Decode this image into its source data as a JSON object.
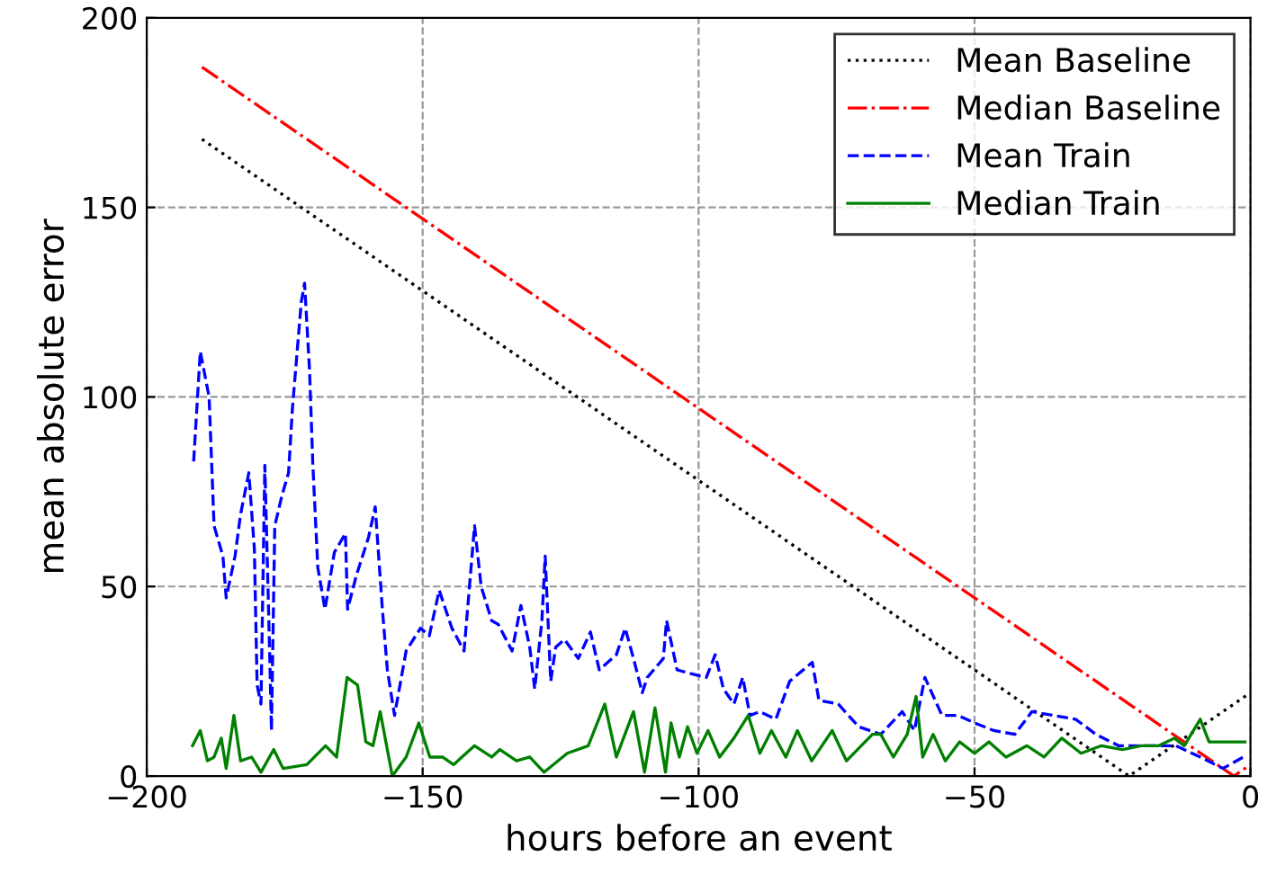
{
  "chart_data": {
    "type": "line",
    "xlabel": "hours before an event",
    "ylabel": "mean absolute error",
    "xlim": [
      -200,
      0
    ],
    "xticks": [
      {
        "value": -200,
        "label": "−200"
      },
      {
        "value": -150,
        "label": "−150"
      },
      {
        "value": -100,
        "label": "−100"
      },
      {
        "value": -50,
        "label": "−50"
      },
      0
    ],
    "ylim": [
      0,
      200
    ],
    "yticks": [
      0,
      50,
      100,
      150,
      200
    ],
    "grid": true,
    "legend": "top right",
    "series": [
      {
        "name": "Mean Baseline",
        "color": "#000000",
        "line_style": "dotted",
        "x": [
          -190,
          -22,
          0
        ],
        "values": [
          168,
          0,
          22
        ]
      },
      {
        "name": "Median Baseline",
        "color": "#ff0000",
        "line_style": "dashdot",
        "x": [
          -190,
          -3,
          0
        ],
        "values": [
          187,
          0,
          3
        ]
      },
      {
        "name": "Mean Train",
        "color": "#0000ff",
        "line_style": "dashed",
        "x": [
          -191.5,
          -190.3,
          -188.7,
          -187.8,
          -186.2,
          -185.6,
          -184,
          -183,
          -181.5,
          -180.5,
          -180,
          -179.3,
          -178.6,
          -177.7,
          -177.4,
          -176.8,
          -175.5,
          -174.3,
          -173.6,
          -172,
          -171.4,
          -170.5,
          -169.9,
          -169,
          -167.7,
          -166,
          -164,
          -163.6,
          -162,
          -159.8,
          -158.6,
          -157.3,
          -156.4,
          -155.1,
          -153,
          -150.4,
          -148.8,
          -147,
          -144.7,
          -142.5,
          -140.6,
          -139.4,
          -137.5,
          -136.3,
          -133.8,
          -132.2,
          -130.6,
          -129.7,
          -128.4,
          -127.8,
          -126.8,
          -125.9,
          -124.3,
          -121.8,
          -119.6,
          -118,
          -114.9,
          -113.3,
          -111.8,
          -110.2,
          -109.3,
          -106.4,
          -105.8,
          -103.9,
          -101.4,
          -98.6,
          -97,
          -95.5,
          -93.6,
          -92,
          -90.7,
          -88.9,
          -86,
          -83.5,
          -79.4,
          -78.2,
          -74.7,
          -71,
          -67,
          -63.1,
          -60.9,
          -59,
          -55.9,
          -53,
          -50,
          -46.5,
          -42.7,
          -39.6,
          -35.8,
          -31.7,
          -28,
          -23.9,
          -18.5,
          -13.5,
          -9.1,
          -5,
          -1.3
        ],
        "values": [
          83,
          112,
          100,
          66,
          58,
          47,
          58,
          69,
          80,
          60,
          24,
          19,
          82,
          31,
          12,
          66,
          74,
          80,
          97,
          125,
          130,
          107,
          82,
          55,
          44,
          59,
          64,
          44,
          53,
          63,
          71,
          44,
          28,
          16,
          33,
          39,
          37,
          49,
          39,
          33,
          66,
          50,
          41,
          40,
          33,
          45,
          34,
          23,
          41,
          58,
          25,
          34,
          36,
          31,
          38,
          28,
          32,
          39,
          31,
          22,
          26,
          31,
          41,
          28,
          27,
          26,
          32,
          23,
          19,
          26,
          16,
          17,
          15,
          25,
          30,
          20,
          19,
          13,
          11,
          17,
          12,
          26,
          16,
          16,
          14,
          12,
          11,
          17,
          16,
          15,
          11,
          8,
          8,
          8,
          5,
          2,
          5
        ]
      },
      {
        "name": "Median Train",
        "color": "#008000",
        "line_style": "solid",
        "x": [
          -191.7,
          -190.3,
          -189,
          -187.8,
          -186.5,
          -185.6,
          -184.2,
          -183,
          -181,
          -179.3,
          -177,
          -175.3,
          -171,
          -167.6,
          -165.6,
          -163.7,
          -161.8,
          -160.3,
          -159,
          -157.7,
          -155.5,
          -153,
          -150.7,
          -148.7,
          -146.4,
          -144.4,
          -140.6,
          -137.5,
          -136,
          -133,
          -130.6,
          -128,
          -123.8,
          -120,
          -117,
          -114.9,
          -111.8,
          -109.8,
          -107.9,
          -106,
          -105,
          -103.5,
          -102,
          -100.3,
          -98.3,
          -96.2,
          -93.6,
          -91,
          -88.9,
          -86.8,
          -84.2,
          -82.1,
          -79.5,
          -75.8,
          -73.2,
          -68.5,
          -67,
          -64.7,
          -62.2,
          -60.6,
          -59.4,
          -57.5,
          -55.3,
          -52.7,
          -50,
          -47.4,
          -44.3,
          -40.5,
          -37.4,
          -34.2,
          -30.7,
          -27,
          -23.2,
          -19.8,
          -16.6,
          -13.8,
          -12,
          -9.1,
          -7.5,
          -4,
          -1
        ],
        "values": [
          8,
          12,
          4,
          5,
          10,
          2,
          16,
          4,
          5,
          1,
          7,
          2,
          3,
          8,
          5,
          26,
          24,
          9,
          8,
          17,
          0,
          5,
          14,
          5,
          5,
          3,
          8,
          5,
          7,
          4,
          5,
          1,
          6,
          8,
          19,
          5,
          17,
          1,
          18,
          1,
          14,
          5,
          13,
          6,
          12,
          5,
          10,
          16,
          6,
          12,
          5,
          12,
          4,
          12,
          4,
          11,
          11,
          5,
          11,
          21,
          5,
          11,
          4,
          9,
          6,
          9,
          5,
          8,
          5,
          10,
          6,
          8,
          7,
          8,
          8,
          10,
          8,
          15,
          9,
          9,
          9
        ]
      }
    ]
  }
}
